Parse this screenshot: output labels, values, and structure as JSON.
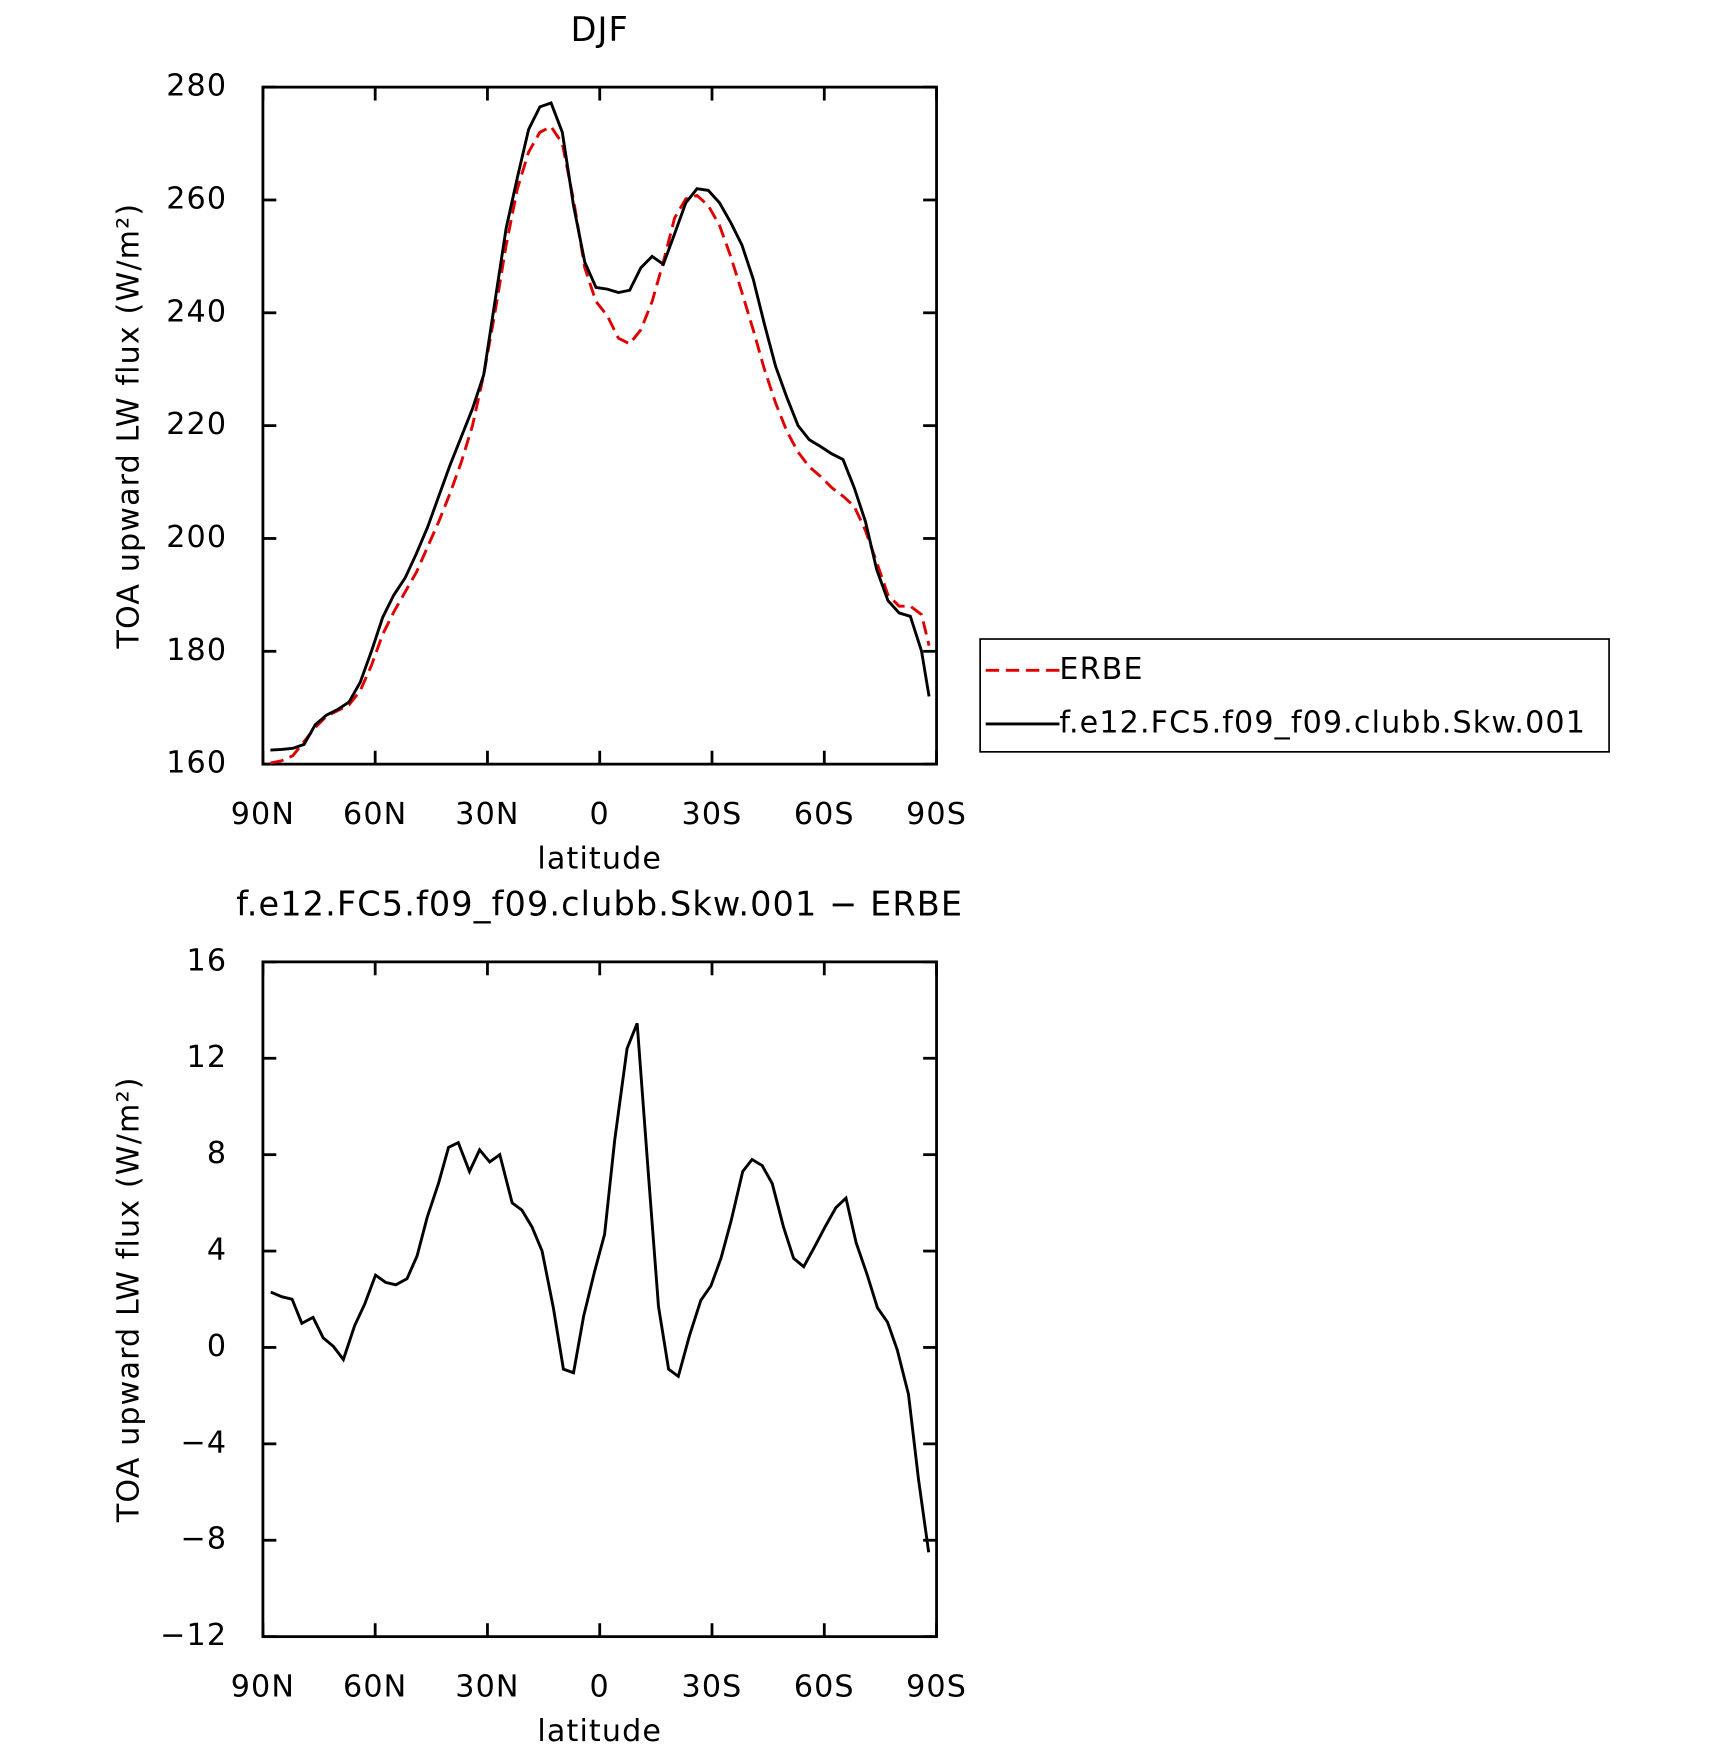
{
  "chart_data": [
    {
      "type": "line",
      "title": "DJF",
      "x_label": "latitude",
      "y_label": "TOA upward LW flux (W/m²)",
      "xlim": [
        90,
        -90
      ],
      "xticks": [
        {
          "value": 90,
          "label": "90N"
        },
        {
          "value": 60,
          "label": "60N"
        },
        {
          "value": 30,
          "label": "30N"
        },
        0,
        {
          "value": -30,
          "label": "30S"
        },
        {
          "value": -60,
          "label": "60S"
        },
        {
          "value": -90,
          "label": "90S"
        }
      ],
      "ylim": [
        160,
        280
      ],
      "yticks": [
        160,
        180,
        200,
        220,
        240,
        260,
        280
      ],
      "legend": "right",
      "x": [
        88,
        85,
        82,
        79,
        76,
        73,
        70,
        67,
        64,
        61,
        58,
        55,
        52,
        49,
        46,
        43,
        40,
        37,
        34,
        31,
        28,
        25,
        22,
        19,
        16,
        13,
        10,
        7,
        4,
        1,
        -2,
        -5,
        -8,
        -11,
        -14,
        -17,
        -20,
        -23,
        -26,
        -29,
        -32,
        -35,
        -38,
        -41,
        -44,
        -47,
        -50,
        -53,
        -56,
        -59,
        -62,
        -65,
        -68,
        -71,
        -74,
        -77,
        -80,
        -83,
        -86,
        -88
      ],
      "series": [
        {
          "name": "ERBE",
          "color": "#e00000",
          "line_style": "dashed",
          "values": [
            160.2,
            160.6,
            161.5,
            164,
            166.5,
            168.5,
            169.5,
            170.5,
            173,
            177.5,
            183,
            187,
            190.5,
            194,
            198.5,
            203,
            208,
            213.5,
            220,
            229,
            240,
            252,
            262,
            268.5,
            272,
            273,
            270,
            260,
            248,
            242,
            239.5,
            235.5,
            234.5,
            237,
            242,
            249,
            256.8,
            260.2,
            260.8,
            259,
            255.5,
            250,
            243.6,
            237,
            230,
            224,
            219,
            215.3,
            212.7,
            211,
            209,
            207.5,
            205.7,
            201.4,
            195.8,
            190,
            188,
            188,
            186.5,
            181
          ]
        },
        {
          "name": "f.e12.FC5.f09_f09.clubb.Skw.001",
          "color": "#000000",
          "line_style": "solid",
          "values": [
            162.5,
            162.6,
            162.8,
            163.5,
            167,
            168.7,
            169.7,
            171,
            174.5,
            180,
            186,
            190,
            193,
            197.3,
            202,
            207.5,
            213,
            218,
            223,
            229,
            242,
            255,
            264,
            272.5,
            276.5,
            277.2,
            272,
            259,
            249,
            244.5,
            244.2,
            243.6,
            244,
            248,
            250,
            248.6,
            254,
            259.5,
            262,
            261.7,
            259.5,
            256,
            252,
            246,
            238,
            230.5,
            225,
            220,
            217.5,
            216.3,
            215,
            214,
            209,
            203,
            194.5,
            189,
            186.8,
            186.2,
            180,
            172
          ]
        }
      ]
    },
    {
      "type": "line",
      "title": "f.e12.FC5.f09_f09.clubb.Skw.001 − ERBE",
      "x_label": "latitude",
      "y_label": "TOA upward LW flux (W/m²)",
      "xlim": [
        90,
        -90
      ],
      "xticks": [
        {
          "value": 90,
          "label": "90N"
        },
        {
          "value": 60,
          "label": "60N"
        },
        {
          "value": 30,
          "label": "30N"
        },
        0,
        {
          "value": -30,
          "label": "30S"
        },
        {
          "value": -60,
          "label": "60S"
        },
        {
          "value": -90,
          "label": "90S"
        }
      ],
      "ylim": [
        -12,
        16
      ],
      "yticks": [
        {
          "value": -12,
          "label": "−12"
        },
        {
          "value": -8,
          "label": "−8"
        },
        {
          "value": -4,
          "label": "−4"
        },
        0,
        4,
        8,
        12,
        16
      ],
      "x": [
        87.9,
        84.9,
        82.2,
        79.6,
        76.6,
        73.9,
        71.2,
        68.5,
        65.5,
        62.8,
        59.9,
        57.2,
        54.5,
        51.5,
        48.8,
        46.1,
        43.1,
        40.4,
        37.8,
        34.8,
        32.1,
        29.4,
        26.7,
        23.4,
        20.8,
        18.1,
        15.4,
        12.4,
        9.7,
        7.0,
        4.3,
        1.3,
        -1.3,
        -4.0,
        -7.3,
        -10.0,
        -13.0,
        -15.7,
        -18.4,
        -21.0,
        -24.0,
        -27.0,
        -29.7,
        -32.4,
        -35.1,
        -38.2,
        -40.7,
        -43.4,
        -46.1,
        -49.1,
        -51.8,
        -54.5,
        -57.5,
        -60.2,
        -63.1,
        -65.8,
        -68.5,
        -71.5,
        -74.2,
        -76.9,
        -79.5,
        -82.5,
        -85.2,
        -87.9
      ],
      "series": [
        {
          "color": "#000000",
          "line_style": "solid",
          "values": [
            2.3,
            2.1,
            2.0,
            1.0,
            1.25,
            0.4,
            0.05,
            -0.5,
            0.9,
            1.8,
            3.0,
            2.7,
            2.6,
            2.85,
            3.8,
            5.4,
            6.8,
            8.3,
            8.5,
            7.3,
            8.2,
            7.7,
            8.0,
            6.0,
            5.7,
            5.0,
            4.0,
            1.65,
            -0.9,
            -1.05,
            1.3,
            3.2,
            4.7,
            8.6,
            12.4,
            13.45,
            7.2,
            1.7,
            -0.9,
            -1.2,
            0.5,
            1.95,
            2.55,
            3.7,
            5.25,
            7.3,
            7.8,
            7.55,
            6.8,
            5.0,
            3.7,
            3.35,
            4.2,
            5.0,
            5.8,
            6.2,
            4.35,
            3.0,
            1.65,
            1.05,
            -0.1,
            -1.95,
            -5.5,
            -8.5
          ]
        }
      ]
    }
  ]
}
